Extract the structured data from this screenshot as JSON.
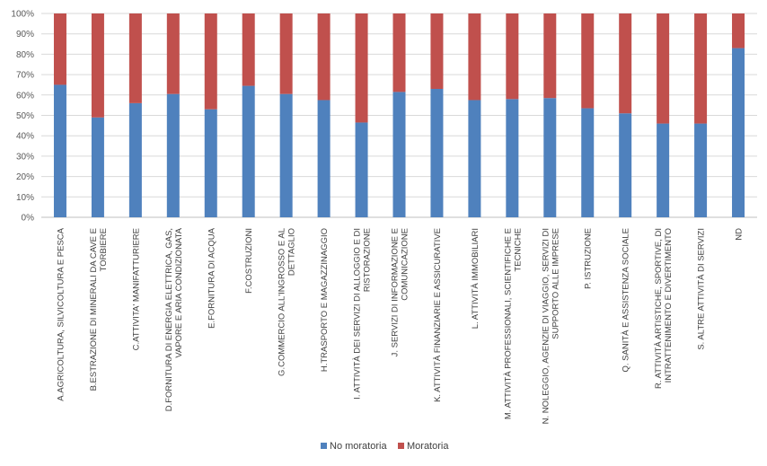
{
  "chart_data": {
    "type": "bar",
    "stacked": true,
    "percent_stacked": true,
    "ylim": [
      0,
      100
    ],
    "y_ticks": [
      "0%",
      "10%",
      "20%",
      "30%",
      "40%",
      "50%",
      "60%",
      "70%",
      "80%",
      "90%",
      "100%"
    ],
    "grid": true,
    "legend_position": "bottom",
    "categories": [
      [
        "A.AGRICOLTURA, SILVICOLTURA  E  PESCA"
      ],
      [
        "B.ESTRAZIONE DI MINERALI DA CAVE E",
        "TORBIERE"
      ],
      [
        "C.ATTIVITA' MANIFATTURIERE"
      ],
      [
        "D.FORNITURA DI ENERGIA ELETTRICA, GAS,",
        "VAPORE E ARIA CONDIZIONATA"
      ],
      [
        "E.FORNITURA DI ACQUA"
      ],
      [
        "F.COSTRUZIONI"
      ],
      [
        "G.COMMERCIO ALL'INGROSSO E AL",
        "DETTAGLIO"
      ],
      [
        "H.TRASPORTO E MAGAZZINAGGIO"
      ],
      [
        "I. ATTIVITÀ DEI SERVIZI DI ALLOGGIO E DI",
        "RISTORAZIONE"
      ],
      [
        "J. SERVIZI DI INFORMAZIONE E",
        "COMUNICAZIONE"
      ],
      [
        "K. ATTIVITÀ FINANZIARIE E ASSICURATIVE"
      ],
      [
        "L. ATTIVITÀ IMMOBILIARI"
      ],
      [
        "M. ATTIVITÀ PROFESSIONALI, SCIENTIFICHE E",
        "TECNICHE"
      ],
      [
        "N. NOLEGGIO, AGENZIE DI VIAGGIO, SERVIZI DI",
        "SUPPORTO ALLE IMPRESE"
      ],
      [
        "P. ISTRUZIONE"
      ],
      [
        "Q. SANITÀ E ASSISTENZA SOCIALE"
      ],
      [
        "R. ATTIVITÀ ARTISTICHE, SPORTIVE, DI",
        "INTRATTENIMENTO E DIVERTIMENTO"
      ],
      [
        "S. ALTRE ATTIVITÀ DI SERVIZI"
      ],
      [
        "ND"
      ]
    ],
    "series": [
      {
        "name": "No moratoria",
        "color": "#4F81BD",
        "values": [
          65,
          49,
          56,
          60.5,
          53,
          64.5,
          60.5,
          57.5,
          46.5,
          61.5,
          63,
          57.5,
          58,
          58.5,
          53.5,
          51,
          46,
          46,
          83
        ]
      },
      {
        "name": "Moratoria",
        "color": "#C0504D",
        "values": [
          35,
          51,
          44,
          39.5,
          47,
          35.5,
          39.5,
          42.5,
          53.5,
          38.5,
          37,
          42.5,
          42,
          41.5,
          46.5,
          49,
          54,
          54,
          17
        ]
      }
    ]
  }
}
